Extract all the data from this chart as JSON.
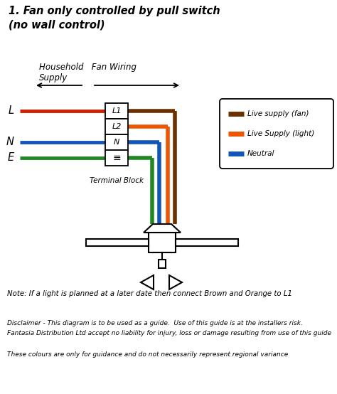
{
  "title_line1": "1. Fan only controlled by pull switch",
  "title_line2": "(no wall control)",
  "title_fontsize": 10.5,
  "label_household": "Household   Fan Wiring",
  "label_supply": "Supply",
  "bg_color": "#ffffff",
  "wire_colors": {
    "L_red": "#cc2200",
    "N_blue": "#1155bb",
    "E_green": "#228822",
    "brown": "#6B3000",
    "orange": "#ee5500",
    "blue_fan": "#1155bb",
    "green_fan": "#228822"
  },
  "terminal_labels": [
    "L1",
    "L2",
    "N",
    "E"
  ],
  "legend_items": [
    {
      "label": "Live supply (fan)",
      "color": "#6B3000"
    },
    {
      "label": "Live Supply (light)",
      "color": "#ee5500"
    },
    {
      "label": "Neutral",
      "color": "#1155bb"
    }
  ],
  "note_text": "Note: If a light is planned at a later date then connect Brown and Orange to L1",
  "disclaimer_line1": "Disclaimer - This diagram is to be used as a guide.  Use of this guide is at the installers risk.",
  "disclaimer_line2": "Fantasia Distribution Ltd accept no liability for injury, loss or damage resulting from use of this guide",
  "colours_text": "These colours are only for guidance and do not necessarily represent regional variance"
}
